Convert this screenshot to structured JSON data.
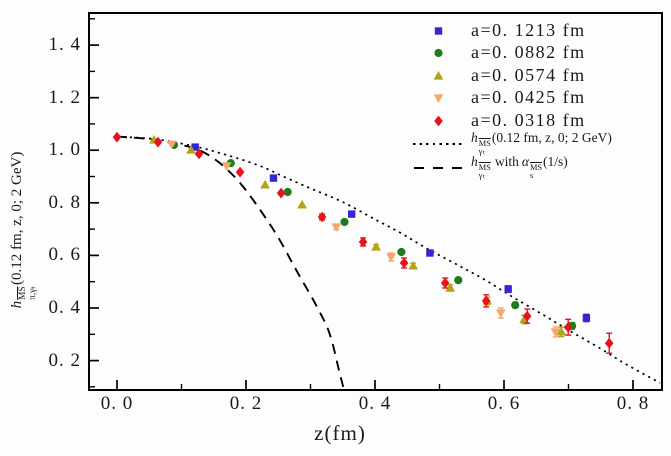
{
  "axes_text": {
    "xlabel": "z(fm)",
    "ylabel": {
      "h": "h",
      "sup": "MS",
      "sub": "π,γₜ",
      "rest": "(0.12 fm, z, 0; 2 GeV)"
    }
  },
  "legend": {
    "entries": [
      {
        "label": "a=0. 1213 fm",
        "marker": "square",
        "color": "#3526d0"
      },
      {
        "label": "a=0. 0882 fm",
        "marker": "circle",
        "color": "#1d7c1e"
      },
      {
        "label": "a=0. 0574 fm",
        "marker": "triangle-up",
        "color": "#b3a31a"
      },
      {
        "label": "a=0. 0425 fm",
        "marker": "triangle-down",
        "color": "#f4a769"
      },
      {
        "label": "a=0. 0318 fm",
        "marker": "diamond",
        "color": "#e3141b"
      }
    ],
    "fit1": {
      "h": "h",
      "sup": "MS",
      "sub": "γₜ",
      "rest": "(0.12 fm, z, 0; 2 GeV)"
    },
    "fit2": {
      "h": "h",
      "sup": "MS",
      "sub": "γₜ",
      "mid": "with",
      "alpha": "α",
      "asup": "MS",
      "asub": "s",
      "rest": "(1/s)"
    }
  },
  "chart_data": {
    "type": "scatter",
    "title": "",
    "xlabel": "z(fm)",
    "ylabel": "h^{MS(bar)}_{π,γt}(0.12 fm, z, 0; 2 GeV)",
    "xlim": [
      -0.0434,
      0.845
    ],
    "ylim": [
      0.088,
      1.522
    ],
    "grid": false,
    "legend_position": "upper right",
    "xticks": {
      "major": [
        0.0,
        0.2,
        0.4,
        0.6,
        0.8
      ],
      "labels": [
        "0. 0",
        "0. 2",
        "0. 4",
        "0. 6",
        "0. 8"
      ],
      "minor": [
        0.1,
        0.3,
        0.5,
        0.7
      ]
    },
    "yticks": {
      "major": [
        0.2,
        0.4,
        0.6,
        0.8,
        1.0,
        1.2,
        1.4
      ],
      "labels": [
        "0. 2",
        "0. 4",
        "0. 6",
        "0. 8",
        "1. 0",
        "1. 2",
        "1. 4"
      ],
      "minor": [
        0.1,
        0.3,
        0.5,
        0.7,
        0.9,
        1.1,
        1.3,
        1.5
      ]
    },
    "series": [
      {
        "name": "a=0. 1213 fm",
        "marker": "square",
        "color": "#3526d0",
        "points": [
          [
            0.1213,
            1.012,
            0.005
          ],
          [
            0.2426,
            0.894,
            0.006
          ],
          [
            0.3639,
            0.757,
            0.008
          ],
          [
            0.4852,
            0.609,
            0.01
          ],
          [
            0.6065,
            0.472,
            0.012
          ],
          [
            0.7278,
            0.362,
            0.014
          ]
        ]
      },
      {
        "name": "a=0. 0882 fm",
        "marker": "circle",
        "color": "#1d7c1e",
        "points": [
          [
            0.0882,
            1.02,
            0.004
          ],
          [
            0.1764,
            0.951,
            0.005
          ],
          [
            0.2646,
            0.841,
            0.006
          ],
          [
            0.3528,
            0.727,
            0.007
          ],
          [
            0.441,
            0.613,
            0.008
          ],
          [
            0.5292,
            0.506,
            0.009
          ],
          [
            0.6174,
            0.411,
            0.01
          ],
          [
            0.7056,
            0.332,
            0.012
          ]
        ]
      },
      {
        "name": "a=0. 0574 fm",
        "marker": "triangle-up",
        "color": "#b3a31a",
        "points": [
          [
            0.0574,
            1.039,
            0.004
          ],
          [
            0.1148,
            1.001,
            0.005
          ],
          [
            0.2296,
            0.868,
            0.006
          ],
          [
            0.287,
            0.792,
            0.007
          ],
          [
            0.4018,
            0.632,
            0.009
          ],
          [
            0.4592,
            0.56,
            0.01
          ],
          [
            0.5166,
            0.476,
            0.012
          ],
          [
            0.574,
            0.427,
            0.014
          ],
          [
            0.6314,
            0.356,
            0.016
          ],
          [
            0.6888,
            0.309,
            0.018
          ]
        ]
      },
      {
        "name": "a=0. 0425 fm",
        "marker": "triangle-down",
        "color": "#f4a769",
        "points": [
          [
            0.085,
            1.023,
            0.005
          ],
          [
            0.17,
            0.94,
            0.006
          ],
          [
            0.34,
            0.708,
            0.01
          ],
          [
            0.425,
            0.594,
            0.015
          ],
          [
            0.595,
            0.381,
            0.019
          ],
          [
            0.68,
            0.309,
            0.019
          ]
        ]
      },
      {
        "name": "a=0. 0318 fm",
        "marker": "diamond",
        "color": "#e3141b",
        "points": [
          [
            0.0,
            1.05,
            0.004
          ],
          [
            0.0636,
            1.031,
            0.004
          ],
          [
            0.1272,
            0.986,
            0.005
          ],
          [
            0.1908,
            0.917,
            0.006
          ],
          [
            0.2544,
            0.837,
            0.008
          ],
          [
            0.318,
            0.746,
            0.011
          ],
          [
            0.3816,
            0.651,
            0.015
          ],
          [
            0.4452,
            0.571,
            0.019
          ],
          [
            0.5088,
            0.495,
            0.019
          ],
          [
            0.5724,
            0.427,
            0.023
          ],
          [
            0.636,
            0.369,
            0.027
          ],
          [
            0.6996,
            0.327,
            0.03
          ],
          [
            0.7632,
            0.266,
            0.038
          ]
        ]
      }
    ],
    "curves": [
      {
        "name": "fixed-coupling-fit",
        "style": "dotted",
        "color": "#000000",
        "label": "h^{MS(bar)}_{γt}(0.12 fm, z, 0; 2 GeV)",
        "points": [
          [
            0.0,
            1.052
          ],
          [
            0.06,
            1.042
          ],
          [
            0.12,
            1.015
          ],
          [
            0.17,
            0.982
          ],
          [
            0.22,
            0.942
          ],
          [
            0.26,
            0.898
          ],
          [
            0.3,
            0.855
          ],
          [
            0.35,
            0.803
          ],
          [
            0.4,
            0.737
          ],
          [
            0.44,
            0.685
          ],
          [
            0.48,
            0.627
          ],
          [
            0.53,
            0.561
          ],
          [
            0.57,
            0.508
          ],
          [
            0.61,
            0.447
          ],
          [
            0.66,
            0.375
          ],
          [
            0.7,
            0.316
          ],
          [
            0.75,
            0.245
          ],
          [
            0.79,
            0.185
          ],
          [
            0.842,
            0.115
          ]
        ]
      },
      {
        "name": "running-coupling-fit",
        "style": "dashed",
        "color": "#000000",
        "label": "h^{MS(bar)}_{γt} with α_s^{MS(bar)}(1/s)",
        "points": [
          [
            0.0,
            1.052
          ],
          [
            0.05,
            1.042
          ],
          [
            0.1,
            1.02
          ],
          [
            0.13,
            0.998
          ],
          [
            0.16,
            0.95
          ],
          [
            0.19,
            0.878
          ],
          [
            0.22,
            0.78
          ],
          [
            0.25,
            0.668
          ],
          [
            0.28,
            0.535
          ],
          [
            0.31,
            0.405
          ],
          [
            0.33,
            0.3
          ],
          [
            0.345,
            0.155
          ],
          [
            0.352,
            0.088
          ]
        ]
      }
    ]
  }
}
